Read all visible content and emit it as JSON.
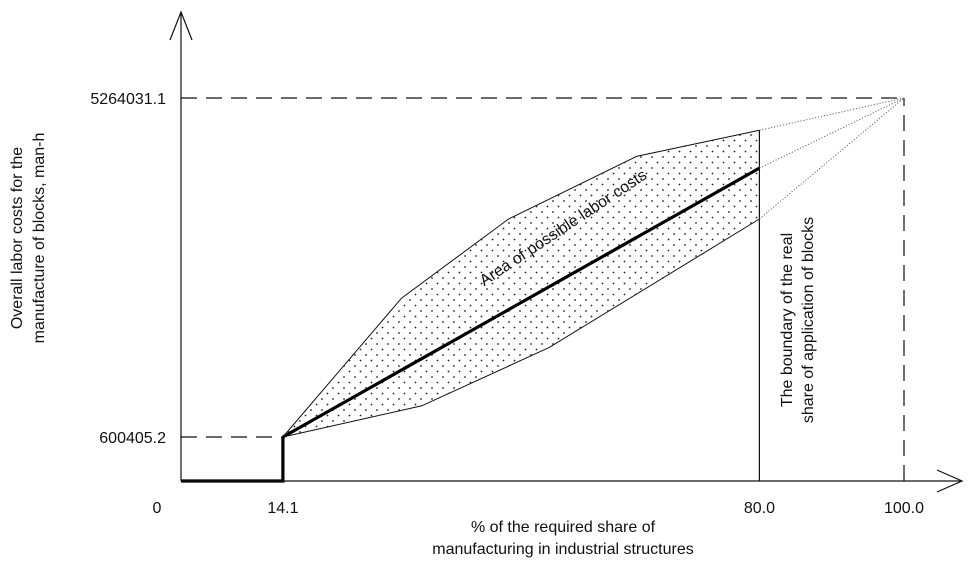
{
  "chart_data": {
    "type": "line",
    "title": "",
    "xlabel_lines": [
      "% of the required share of",
      "manufacturing in industrial structures"
    ],
    "ylabel_lines": [
      "Overall labor costs for the",
      "manufacture of blocks, man-h"
    ],
    "x_tick_values": [
      0,
      14.1,
      80.0,
      100.0
    ],
    "x_tick_labels": [
      "0",
      "14.1",
      "80.0",
      "100.0"
    ],
    "y_tick_values": [
      600405.2,
      5264031.1
    ],
    "y_tick_labels": [
      "600405.2",
      "5264031.1"
    ],
    "xlim": [
      0,
      100
    ],
    "grid": false,
    "series": [
      {
        "role": "central",
        "style": "thick-solid",
        "x": [
          14.1,
          80.0
        ],
        "y": [
          600405.2,
          4300000
        ]
      },
      {
        "role": "upper-bound",
        "style": "thin-solid",
        "x": [
          14.1,
          30.5,
          45.3,
          63.0,
          80.0
        ],
        "y": [
          600405.2,
          2510000,
          3600000,
          4460000,
          4820000
        ]
      },
      {
        "role": "lower-bound",
        "style": "thin-solid",
        "x": [
          14.1,
          33.3,
          50.9,
          80.0
        ],
        "y": [
          600405.2,
          1030000,
          1830000,
          3600000
        ]
      },
      {
        "role": "extrapolation",
        "style": "dotted",
        "x": [
          80.0,
          100.0
        ],
        "y": [
          4820000,
          5264031.1
        ]
      },
      {
        "role": "extrapolation",
        "style": "dotted",
        "x": [
          80.0,
          100.0
        ],
        "y": [
          4300000,
          5264031.1
        ]
      },
      {
        "role": "extrapolation",
        "style": "dotted",
        "x": [
          80.0,
          100.0
        ],
        "y": [
          3600000,
          5264031.1
        ]
      },
      {
        "role": "base-segment",
        "style": "thick-solid",
        "x": [
          0,
          14.1,
          14.1
        ],
        "y": [
          0,
          0,
          600405.2
        ]
      }
    ],
    "reference_lines": [
      {
        "orientation": "horizontal",
        "y": 600405.2,
        "from_x": 0,
        "to_x": 14.1,
        "style": "dashed"
      },
      {
        "orientation": "horizontal",
        "y": 5264031.1,
        "from_x": 0,
        "to_x": 100.0,
        "style": "dashed"
      },
      {
        "orientation": "vertical",
        "x": 80.0,
        "style": "solid"
      },
      {
        "orientation": "vertical",
        "x": 100.0,
        "style": "dashed"
      }
    ],
    "annotations": {
      "region_label": "Area of possible labor costs",
      "boundary_label_lines": [
        "The boundary of the real",
        "share of application of blocks"
      ]
    },
    "region_fill": "dotted"
  }
}
